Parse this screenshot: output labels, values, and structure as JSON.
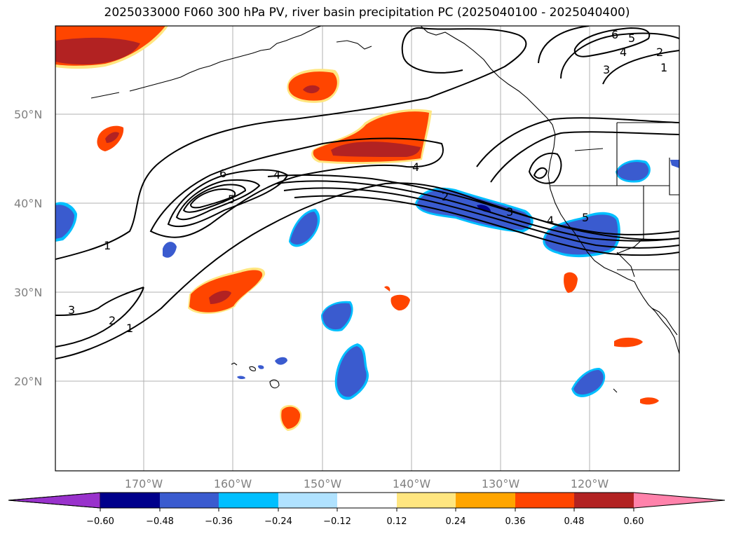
{
  "title": "2025033000 F060 300 hPa PV, river basin precipitation PC (2025040100 - 2025040400)",
  "map": {
    "lon_ticks": [
      "170°W",
      "160°W",
      "150°W",
      "140°W",
      "130°W",
      "120°W"
    ],
    "lat_ticks": [
      "50°N",
      "40°N",
      "30°N",
      "20°N"
    ],
    "contour_labels": [
      "1",
      "1",
      "2",
      "2",
      "3",
      "3",
      "3",
      "4",
      "4",
      "4",
      "4",
      "5",
      "5",
      "5",
      "6",
      "6",
      "1",
      "2"
    ],
    "colors": {
      "coastline": "#000000",
      "gridline": "#b0b0b0",
      "contour": "#000000"
    }
  },
  "colorbar": {
    "ticks": [
      "−0.60",
      "−0.48",
      "−0.36",
      "−0.24",
      "−0.12",
      "0.12",
      "0.24",
      "0.36",
      "0.48",
      "0.60"
    ],
    "colors": [
      "#9932CC",
      "#00008B",
      "#3A5BCF",
      "#00BFFF",
      "#B0E2FF",
      "#FFFFFF",
      "#FFE680",
      "#FFA500",
      "#FF4500",
      "#B22222",
      "#FF82AB"
    ]
  }
}
